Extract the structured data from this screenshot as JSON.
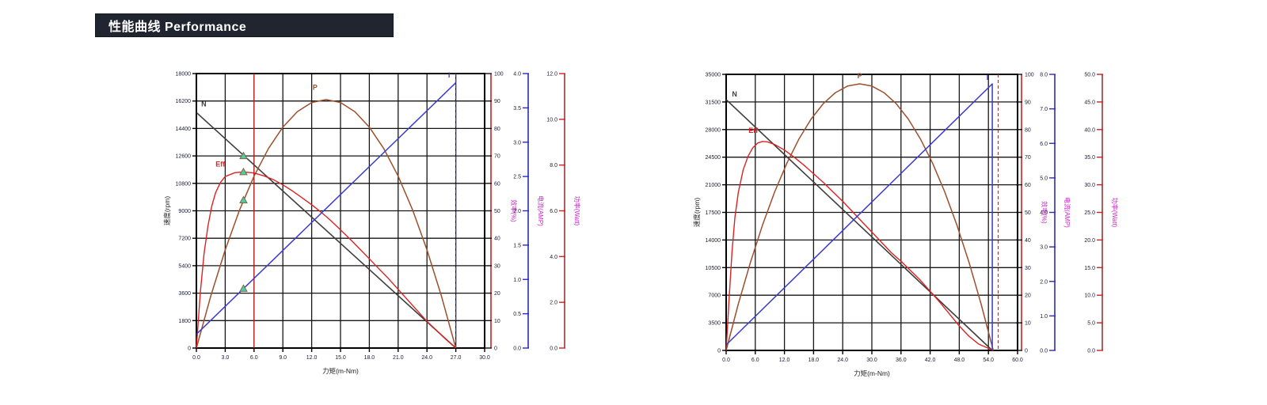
{
  "header": {
    "title": "性能曲线 Performance",
    "bg": "#20252f",
    "color": "#ffffff"
  },
  "chart_data": [
    {
      "type": "line",
      "title": "",
      "xlabel": "力矩(m-Nm)",
      "ylabel": "速度(rpm)",
      "xlim": [
        0,
        30
      ],
      "ylim": [
        0,
        18000
      ],
      "grid": true,
      "x_ticks": [
        "0.0",
        "3.0",
        "6.0",
        "9.0",
        "12.0",
        "15.0",
        "18.0",
        "21.0",
        "24.0",
        "27.0",
        "30.0"
      ],
      "y_ticks": [
        "0",
        "1800",
        "3600",
        "5400",
        "7200",
        "9000",
        "10800",
        "12600",
        "14400",
        "16200",
        "18000"
      ],
      "right_axes": [
        {
          "title": "效率(%)",
          "range": [
            0,
            100
          ],
          "ticks": [
            "0",
            "10",
            "20",
            "30",
            "40",
            "50",
            "60",
            "70",
            "80",
            "90",
            "100"
          ],
          "axis_color": "#cc2222",
          "tick_color": "#111111",
          "label_side": "right"
        },
        {
          "title": "电流(AMP)",
          "range": [
            0,
            4
          ],
          "ticks": [
            "0.0",
            "0.5",
            "1.0",
            "1.5",
            "2.0",
            "2.5",
            "3.0",
            "3.5",
            "4.0"
          ],
          "axis_color": "#2b2bbb",
          "tick_color": "#2b2bbb",
          "label_side": "left"
        },
        {
          "title": "功率(Watt)",
          "range": [
            0,
            12
          ],
          "ticks": [
            "0.0",
            "2.0",
            "4.0",
            "6.0",
            "8.0",
            "10.0",
            "12.0"
          ],
          "axis_color": "#993333",
          "tick_color": "#cc2222",
          "label_side": "left"
        }
      ],
      "series": [
        {
          "name": "N",
          "color": "#3d3d3d",
          "width": 1.6,
          "label": {
            "text": "N",
            "x": 0.5,
            "y": 16000
          },
          "points": [
            [
              0,
              15450
            ],
            [
              27,
              0
            ]
          ]
        },
        {
          "name": "P",
          "color": "#9d4f2c",
          "width": 1.5,
          "label": {
            "text": "P",
            "x": 12.1,
            "y": 17100
          },
          "points": [
            [
              0,
              0
            ],
            [
              1.5,
              3420
            ],
            [
              3,
              6440
            ],
            [
              4.5,
              9060
            ],
            [
              6,
              11270
            ],
            [
              7.5,
              13080
            ],
            [
              9,
              14490
            ],
            [
              10.5,
              15500
            ],
            [
              12,
              16100
            ],
            [
              13.5,
              16300
            ],
            [
              15,
              16100
            ],
            [
              16.5,
              15500
            ],
            [
              18,
              14490
            ],
            [
              19.5,
              13080
            ],
            [
              21,
              11270
            ],
            [
              22.5,
              9060
            ],
            [
              24,
              6440
            ],
            [
              25.5,
              3420
            ],
            [
              27,
              0
            ]
          ]
        },
        {
          "name": "Eff",
          "color": "#dd2222",
          "width": 1.4,
          "label": {
            "text": "Eff",
            "x": 2.0,
            "y": 12050
          },
          "points": [
            [
              0,
              0
            ],
            [
              0.4,
              3600
            ],
            [
              0.8,
              6200
            ],
            [
              1.2,
              8000
            ],
            [
              1.6,
              9300
            ],
            [
              2,
              10200
            ],
            [
              2.5,
              10850
            ],
            [
              3,
              11250
            ],
            [
              4,
              11500
            ],
            [
              4.9,
              11550
            ],
            [
              6,
              11480
            ],
            [
              7,
              11300
            ],
            [
              8,
              11050
            ],
            [
              9,
              10700
            ],
            [
              10,
              10300
            ],
            [
              11,
              9850
            ],
            [
              12,
              9400
            ],
            [
              13,
              8900
            ],
            [
              14,
              8350
            ],
            [
              15,
              7750
            ],
            [
              16,
              7150
            ],
            [
              17,
              6500
            ],
            [
              18,
              5850
            ],
            [
              19,
              5200
            ],
            [
              20,
              4550
            ],
            [
              21,
              3850
            ],
            [
              22,
              3150
            ],
            [
              23,
              2450
            ],
            [
              24,
              1750
            ],
            [
              25,
              1150
            ],
            [
              26,
              550
            ],
            [
              27,
              0
            ]
          ]
        },
        {
          "name": "I",
          "color": "#3a3ad0",
          "width": 1.5,
          "label": {
            "text": "I",
            "x": 26.2,
            "y": 17900
          },
          "points": [
            [
              0,
              900
            ],
            [
              27,
              17400
            ]
          ]
        }
      ],
      "vlines": [
        {
          "x": 6.0,
          "color": "#cc2222",
          "width": 1.2,
          "dash": ""
        },
        {
          "x": 27.0,
          "color": "#3a3ad0",
          "width": 1.3,
          "dash": "4 3"
        }
      ],
      "markers": {
        "shape": "triangle",
        "x": 4.9,
        "fill": "#55c9a1",
        "stroke": "#7a6a40",
        "ys": [
          12600,
          11550,
          9700,
          3900
        ]
      }
    },
    {
      "type": "line",
      "title": "",
      "xlabel": "力矩(m-Nm)",
      "ylabel": "速度(rpm)",
      "xlim": [
        0,
        60
      ],
      "ylim": [
        0,
        35000
      ],
      "grid": true,
      "x_ticks": [
        "0.0",
        "6.0",
        "12.0",
        "18.0",
        "24.0",
        "30.0",
        "36.0",
        "42.0",
        "48.0",
        "54.0",
        "60.0"
      ],
      "y_ticks": [
        "0",
        "3500",
        "7000",
        "10500",
        "14000",
        "17500",
        "21000",
        "24500",
        "28000",
        "31500",
        "35000"
      ],
      "right_axes": [
        {
          "title": "效率(%)",
          "range": [
            0,
            100
          ],
          "ticks": [
            "0",
            "10",
            "20",
            "30",
            "40",
            "50",
            "60",
            "70",
            "80",
            "90",
            "100"
          ],
          "axis_color": "#cc2222",
          "tick_color": "#111111",
          "label_side": "right"
        },
        {
          "title": "电流(AMP)",
          "range": [
            0,
            8
          ],
          "ticks": [
            "0.0",
            "1.0",
            "2.0",
            "3.0",
            "4.0",
            "5.0",
            "6.0",
            "7.0",
            "8.0"
          ],
          "axis_color": "#2b2bbb",
          "tick_color": "#2b2bbb",
          "label_side": "left"
        },
        {
          "title": "功率(Watt)",
          "range": [
            0,
            50
          ],
          "ticks": [
            "0.0",
            "5.0",
            "10.0",
            "15.0",
            "20.0",
            "25.0",
            "30.0",
            "35.0",
            "40.0",
            "45.0",
            "50.0"
          ],
          "axis_color": "#993333",
          "tick_color": "#cc2222",
          "label_side": "left"
        }
      ],
      "series": [
        {
          "name": "N",
          "color": "#3d3d3d",
          "width": 1.6,
          "label": {
            "text": "N",
            "x": 1.2,
            "y": 32500
          },
          "points": [
            [
              0,
              31800
            ],
            [
              54.8,
              0
            ]
          ]
        },
        {
          "name": "P",
          "color": "#9d4f2c",
          "width": 1.5,
          "label": {
            "text": "P",
            "x": 27.0,
            "y": 34800
          },
          "points": [
            [
              0,
              0
            ],
            [
              2.5,
              5870
            ],
            [
              5,
              11170
            ],
            [
              7.5,
              15920
            ],
            [
              10,
              20110
            ],
            [
              12.5,
              23740
            ],
            [
              15,
              26820
            ],
            [
              17.5,
              29330
            ],
            [
              20,
              31290
            ],
            [
              22.5,
              32680
            ],
            [
              25,
              33520
            ],
            [
              27.5,
              33800
            ],
            [
              30,
              33520
            ],
            [
              32.5,
              32680
            ],
            [
              35,
              31290
            ],
            [
              37.5,
              29330
            ],
            [
              40,
              26820
            ],
            [
              42.5,
              23740
            ],
            [
              45,
              20110
            ],
            [
              47.5,
              15920
            ],
            [
              50,
              11170
            ],
            [
              52.5,
              5870
            ],
            [
              55,
              0
            ]
          ]
        },
        {
          "name": "Eff",
          "color": "#dd2222",
          "width": 1.4,
          "label": {
            "text": "Eff",
            "x": 4.6,
            "y": 27900
          },
          "points": [
            [
              0,
              0
            ],
            [
              0.6,
              6500
            ],
            [
              1.2,
              12500
            ],
            [
              1.8,
              16800
            ],
            [
              2.5,
              20000
            ],
            [
              3.5,
              22900
            ],
            [
              4.5,
              24600
            ],
            [
              5.5,
              25700
            ],
            [
              6.5,
              26300
            ],
            [
              7.5,
              26500
            ],
            [
              8.5,
              26450
            ],
            [
              10,
              26100
            ],
            [
              12,
              25400
            ],
            [
              14,
              24500
            ],
            [
              16,
              23500
            ],
            [
              18,
              22400
            ],
            [
              20,
              21300
            ],
            [
              22,
              20100
            ],
            [
              24,
              18900
            ],
            [
              26,
              17600
            ],
            [
              28,
              16300
            ],
            [
              30,
              15000
            ],
            [
              32,
              13700
            ],
            [
              34,
              12400
            ],
            [
              36,
              11300
            ],
            [
              38,
              10100
            ],
            [
              40,
              8900
            ],
            [
              42,
              7500
            ],
            [
              44,
              6100
            ],
            [
              46,
              4600
            ],
            [
              48,
              3100
            ],
            [
              50,
              1800
            ],
            [
              52,
              800
            ],
            [
              55,
              0
            ]
          ]
        },
        {
          "name": "I",
          "color": "#3a3ad0",
          "width": 1.5,
          "label": {
            "text": "I",
            "x": 53.6,
            "y": 34600
          },
          "points": [
            [
              0,
              700
            ],
            [
              54.8,
              33800
            ],
            [
              54.8,
              0
            ]
          ]
        }
      ],
      "vlines": [
        {
          "x": 56.0,
          "color": "#993333",
          "width": 1.0,
          "dash": "4 3"
        }
      ],
      "markers": null
    }
  ],
  "colors": {
    "grid": "#161616",
    "tick_text": "#1b1b33",
    "axis_title": "#222222",
    "right_title": "#cc22cc"
  }
}
